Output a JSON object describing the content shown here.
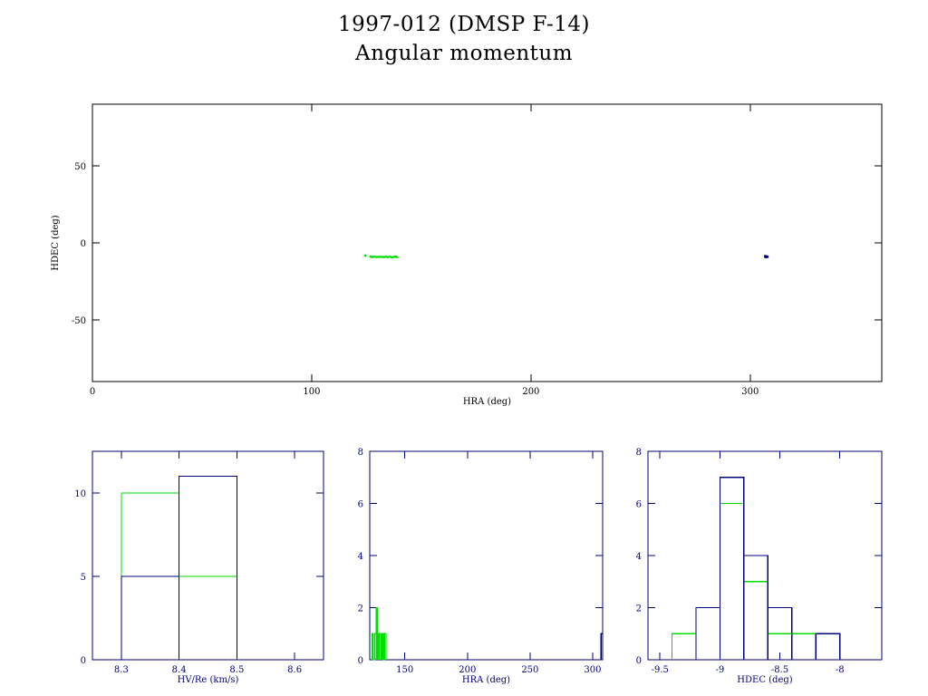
{
  "title": "1997-012 (DMSP F-14)",
  "subtitle": "Angular momentum",
  "colors": {
    "axis_main": "#000000",
    "axis_small": "#00007f",
    "green": "#00dd00",
    "blue": "#00007f"
  },
  "chart_data": [
    {
      "id": "main",
      "type": "scatter",
      "xlabel": "HRA (deg)",
      "ylabel": "HDEC (deg)",
      "xlim": [
        0,
        360
      ],
      "ylim": [
        -90,
        90
      ],
      "xticks": [
        0,
        100,
        200,
        300
      ],
      "yticks": [
        -50,
        0,
        50
      ],
      "series": [
        {
          "color": "green",
          "points": [
            [
              124.5,
              -8.3
            ],
            [
              126.8,
              -9.0
            ],
            [
              127.8,
              -9.1
            ],
            [
              128.8,
              -9.0
            ],
            [
              129.8,
              -9.2
            ],
            [
              130.8,
              -9.0
            ],
            [
              131.8,
              -9.1
            ],
            [
              132.8,
              -9.2
            ],
            [
              133.8,
              -9.0
            ],
            [
              134.8,
              -9.2
            ],
            [
              135.8,
              -9.0
            ],
            [
              136.5,
              -9.4
            ],
            [
              137.4,
              -9.1
            ],
            [
              138.2,
              -9.0
            ],
            [
              139.0,
              -9.2
            ]
          ]
        },
        {
          "color": "blue",
          "points": [
            [
              306.8,
              -8.6
            ],
            [
              307.2,
              -9.0
            ],
            [
              307.6,
              -8.8
            ],
            [
              307.0,
              -9.3
            ],
            [
              307.9,
              -9.1
            ]
          ]
        }
      ]
    },
    {
      "id": "h1",
      "type": "histogram",
      "xlabel": "HV/Re (km/s)",
      "ylabel": "",
      "xlim": [
        8.25,
        8.65
      ],
      "ylim": [
        0,
        12.5
      ],
      "xticks": [
        "8.3",
        "8.4",
        "8.5",
        "8.6"
      ],
      "yticks": [
        "0",
        "5",
        "10"
      ],
      "series": [
        {
          "color": "green",
          "bins": [
            [
              8.3,
              8.4,
              10
            ],
            [
              8.4,
              8.5,
              5
            ]
          ]
        },
        {
          "color": "blue",
          "bins": [
            [
              8.3,
              8.4,
              5
            ],
            [
              8.4,
              8.5,
              11
            ]
          ]
        }
      ]
    },
    {
      "id": "h2",
      "type": "histogram",
      "xlabel": "HRA (deg)",
      "ylabel": "",
      "xlim": [
        122,
        308
      ],
      "ylim": [
        0,
        8
      ],
      "xticks": [
        "150",
        "200",
        "250",
        "300"
      ],
      "yticks": [
        "0",
        "2",
        "4",
        "6",
        "8"
      ],
      "series": [
        {
          "color": "green",
          "bins": [
            [
              124,
              125,
              1
            ],
            [
              125,
              126,
              0
            ],
            [
              126,
              127,
              1
            ],
            [
              127,
              128,
              2
            ],
            [
              128,
              129,
              1
            ],
            [
              129,
              130,
              1
            ],
            [
              130,
              131,
              1
            ],
            [
              131,
              132,
              1
            ],
            [
              132,
              133,
              1
            ],
            [
              133,
              134,
              0
            ],
            [
              134,
              135,
              1
            ]
          ]
        },
        {
          "color": "blue",
          "bins": [
            [
              306.8,
              308,
              1
            ]
          ]
        }
      ]
    },
    {
      "id": "h3",
      "type": "histogram",
      "xlabel": "HDEC (deg)",
      "ylabel": "",
      "xlim": [
        -9.6,
        -7.65
      ],
      "ylim": [
        0,
        8
      ],
      "xticks": [
        "-9.5",
        "-9",
        "-8.5",
        "-8"
      ],
      "yticks": [
        "0",
        "2",
        "4",
        "6",
        "8"
      ],
      "series": [
        {
          "color": "green",
          "bins": [
            [
              -9.4,
              -9.2,
              1
            ],
            [
              -9.2,
              -9.0,
              2
            ],
            [
              -9.0,
              -8.8,
              6
            ],
            [
              -8.8,
              -8.6,
              3
            ],
            [
              -8.6,
              -8.4,
              1
            ],
            [
              -8.4,
              -8.2,
              1
            ]
          ]
        },
        {
          "color": "blue",
          "bins": [
            [
              -9.2,
              -9.0,
              2
            ],
            [
              -9.0,
              -8.8,
              7
            ],
            [
              -8.8,
              -8.6,
              4
            ],
            [
              -8.6,
              -8.4,
              2
            ],
            [
              -8.4,
              -8.2,
              0
            ],
            [
              -8.2,
              -8.0,
              1
            ]
          ]
        }
      ]
    }
  ]
}
